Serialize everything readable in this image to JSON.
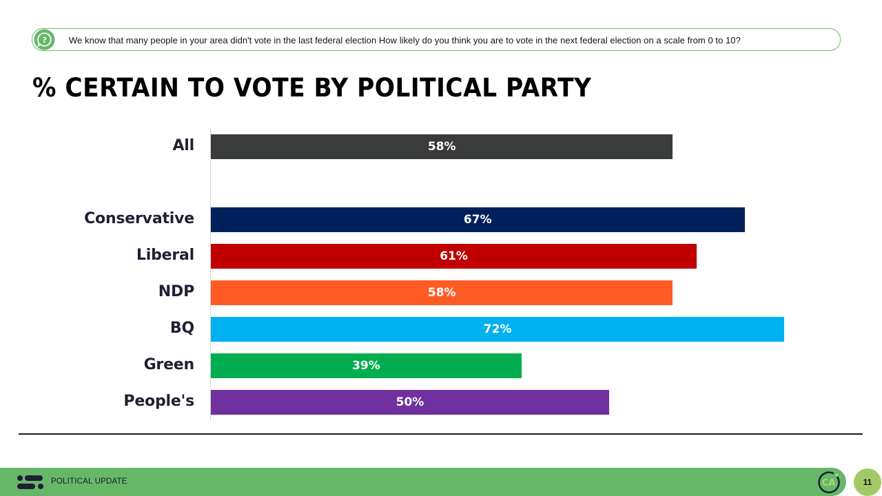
{
  "question": {
    "icon": "question-bubble-icon",
    "text": "We know that many people in your area didn't vote in the last federal election  How likely do you think you are to vote in the next federal election on a scale from 0 to 10?"
  },
  "title": "% CERTAIN TO VOTE BY POLITICAL PARTY",
  "chart_data": {
    "type": "bar",
    "orientation": "horizontal",
    "title": "% CERTAIN TO VOTE BY POLITICAL PARTY",
    "xlabel": "",
    "ylabel": "",
    "unit": "%",
    "grid": false,
    "legend": null,
    "categories": [
      "All",
      "Conservative",
      "Liberal",
      "NDP",
      "BQ",
      "Green",
      "People's"
    ],
    "values": [
      58,
      67,
      61,
      58,
      72,
      39,
      50
    ],
    "labels": [
      "58%",
      "67%",
      "61%",
      "58%",
      "72%",
      "39%",
      "50%"
    ],
    "colors": [
      "#3a3b3b",
      "#00205b",
      "#c00000",
      "#ff5b24",
      "#00b0ef",
      "#00ad4f",
      "#7030a0"
    ]
  },
  "footer": {
    "logo_icon": "dots-bars-logo-icon",
    "label": "POLITICAL UPDATE",
    "brand_icon": "ca-circle-logo-icon",
    "brand_text": "CA",
    "page_number": "11"
  },
  "colors": {
    "accent_green": "#67b769",
    "page_badge": "#a3c967",
    "question_border": "#6cb86a"
  }
}
